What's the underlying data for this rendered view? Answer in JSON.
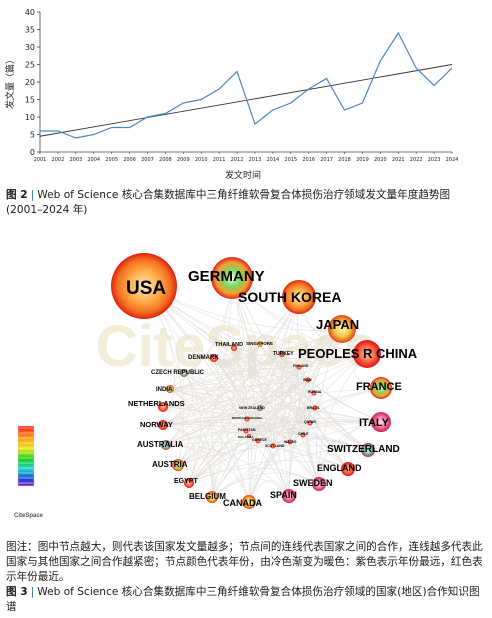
{
  "figure2": {
    "caption_label": "图 2",
    "caption_sep": "|",
    "caption_text": "Web of Science 核心合集数据库中三角纤维软骨复合体损伤治疗领域发文量年度趋势图 (2001–2024 年)",
    "chart_data": {
      "type": "line",
      "title": "",
      "xlabel": "发文时间",
      "ylabel": "发文量（篇）",
      "ylim": [
        0,
        40
      ],
      "yticks": [
        0,
        5,
        10,
        15,
        20,
        25,
        30,
        35,
        40
      ],
      "grid": false,
      "x": [
        "2001",
        "2002",
        "2003",
        "2004",
        "2005",
        "2006",
        "2007",
        "2008",
        "2009",
        "2010",
        "2011",
        "2012",
        "2013",
        "2014",
        "2015",
        "2016",
        "2017",
        "2018",
        "2019",
        "2020",
        "2021",
        "2022",
        "2023",
        "2024"
      ],
      "series": [
        {
          "values": [
            6,
            6,
            4,
            5,
            7,
            7,
            10,
            11,
            14,
            15,
            18,
            23,
            8,
            12,
            14,
            18,
            21,
            12,
            14,
            26,
            34,
            24,
            19,
            24
          ]
        }
      ],
      "trendline": {
        "start": 4.5,
        "end": 25
      },
      "colors": {
        "series": "#4a86c8",
        "trend": "#333333",
        "axis": "#444444"
      }
    }
  },
  "figure3": {
    "caption_label": "图 3",
    "caption_sep": "|",
    "caption_text": "Web of Science 核心合集数据库中三角纤维软骨复合体损伤治疗领域的国家(地区)合作知识图谱",
    "note": "图注：图中节点越大，则代表该国家发文量越多；节点间的连线代表国家之间的合作，连线越多代表此国家与其他国家之间合作越紧密；节点颜色代表年份，由冷色渐变为暖色：紫色表示年份最远，红色表示年份最近。",
    "watermark": "CiteSpace",
    "logo_text": "CiteSpace",
    "countries": [
      {
        "name": "USA"
      },
      {
        "name": "GERMANY"
      },
      {
        "name": "SOUTH KOREA"
      },
      {
        "name": "JAPAN"
      },
      {
        "name": "PEOPLES R CHINA"
      },
      {
        "name": "FRANCE"
      },
      {
        "name": "ITALY"
      },
      {
        "name": "SWITZERLAND"
      },
      {
        "name": "ENGLAND"
      },
      {
        "name": "SWEDEN"
      },
      {
        "name": "SPAIN"
      },
      {
        "name": "CANADA"
      },
      {
        "name": "BELGIUM"
      },
      {
        "name": "EGYPT"
      },
      {
        "name": "AUSTRIA"
      },
      {
        "name": "AUSTRALIA"
      },
      {
        "name": "NORWAY"
      },
      {
        "name": "NETHERLANDS"
      },
      {
        "name": "INDIA"
      },
      {
        "name": "CZECH REPUBLIC"
      },
      {
        "name": "DENMARK"
      },
      {
        "name": "THAILAND"
      },
      {
        "name": "SINGAPORE"
      },
      {
        "name": "TURKEY"
      },
      {
        "name": "FINLAND"
      },
      {
        "name": "IRAN"
      },
      {
        "name": "RUSSIA"
      },
      {
        "name": "BRAZIL"
      },
      {
        "name": "QATAR"
      },
      {
        "name": "CHILE"
      },
      {
        "name": "WALES"
      },
      {
        "name": "NEW ZEALAND"
      },
      {
        "name": "NORTH MACEDONIA"
      },
      {
        "name": "PAKISTAN"
      },
      {
        "name": "GREECE"
      },
      {
        "name": "SCOTLAND"
      },
      {
        "name": "MALAYSIA"
      }
    ]
  }
}
